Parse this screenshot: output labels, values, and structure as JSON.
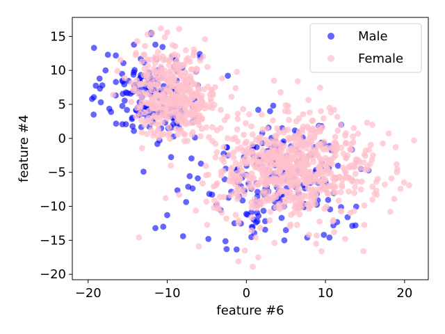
{
  "chart_data": {
    "type": "scatter",
    "title": "",
    "xlabel": "feature #6",
    "ylabel": "feature #4",
    "xlim": [
      -22.0,
      23.0
    ],
    "ylim": [
      -20.8,
      17.8
    ],
    "xticks": [
      -20,
      -10,
      0,
      10,
      20
    ],
    "yticks": [
      -20,
      -15,
      -10,
      -5,
      0,
      5,
      10,
      15
    ],
    "grid": false,
    "legend_position": "top-right",
    "series": [
      {
        "name": "Male",
        "color": "#0000ff",
        "alpha": 0.6,
        "clusters": [
          {
            "cx": -12.0,
            "cy": 6.5,
            "sx": 3.0,
            "sy": 3.5,
            "n": 160
          },
          {
            "cx": 4.0,
            "cy": -6.0,
            "sx": 4.5,
            "sy": 4.0,
            "n": 200
          }
        ],
        "points": [
          {
            "x": -19.5,
            "y": 5.8
          },
          {
            "x": -19.3,
            "y": 3.5
          },
          {
            "x": -17.5,
            "y": 12.3
          },
          {
            "x": -16.5,
            "y": 12.2
          },
          {
            "x": -17.8,
            "y": 10.0
          },
          {
            "x": -18.2,
            "y": 7.8
          },
          {
            "x": -14.2,
            "y": 13.8
          },
          {
            "x": -11.5,
            "y": 13.8
          },
          {
            "x": -13.0,
            "y": -4.9
          },
          {
            "x": -11.5,
            "y": -13.2
          },
          {
            "x": -10.5,
            "y": -13.0
          },
          {
            "x": -10.0,
            "y": -11.3
          },
          {
            "x": -8.0,
            "y": -14.4
          },
          {
            "x": -4.8,
            "y": -14.8
          },
          {
            "x": -2.5,
            "y": -16.3
          },
          {
            "x": 4.8,
            "y": -15.0
          },
          {
            "x": 7.7,
            "y": -14.6
          },
          {
            "x": 9.8,
            "y": -14.2
          },
          {
            "x": 10.5,
            "y": -14.6
          },
          {
            "x": 12.8,
            "y": -11.6
          },
          {
            "x": 13.8,
            "y": -12.8
          },
          {
            "x": 11.0,
            "y": -12.8
          },
          {
            "x": 5.0,
            "y": -13.5
          },
          {
            "x": 1.5,
            "y": 4.2
          },
          {
            "x": 3.0,
            "y": 4.0
          },
          {
            "x": 9.5,
            "y": 1.8
          },
          {
            "x": 12.0,
            "y": 2.0
          },
          {
            "x": 14.5,
            "y": -4.5
          },
          {
            "x": -1.5,
            "y": -12.5
          }
        ]
      },
      {
        "name": "Female",
        "color": "#ffc0cb",
        "alpha": 0.75,
        "clusters": [
          {
            "cx": -9.0,
            "cy": 6.5,
            "sx": 2.7,
            "sy": 3.2,
            "n": 420
          },
          {
            "cx": 6.0,
            "cy": -4.5,
            "sx": 5.0,
            "sy": 3.6,
            "n": 720
          }
        ],
        "points": [
          {
            "x": -8.5,
            "y": 16.1
          },
          {
            "x": -10.0,
            "y": 15.6
          },
          {
            "x": -12.5,
            "y": 15.3
          },
          {
            "x": -13.8,
            "y": 14.3
          },
          {
            "x": 21.2,
            "y": -0.3
          },
          {
            "x": 18.7,
            "y": -8.9
          },
          {
            "x": 18.2,
            "y": -10.8
          },
          {
            "x": 16.5,
            "y": -8.3
          },
          {
            "x": 17.5,
            "y": -6.8
          },
          {
            "x": 14.8,
            "y": -16.6
          },
          {
            "x": 9.5,
            "y": -16.6
          },
          {
            "x": 0.8,
            "y": -18.9
          },
          {
            "x": -1.0,
            "y": -18.1
          },
          {
            "x": 1.5,
            "y": -17.5
          },
          {
            "x": -0.2,
            "y": -16.5
          },
          {
            "x": 3.5,
            "y": 8.5
          },
          {
            "x": 6.5,
            "y": 8.4
          },
          {
            "x": -8.5,
            "y": -8.3
          },
          {
            "x": -10.2,
            "y": -8.8
          },
          {
            "x": -6.0,
            "y": -15.9
          },
          {
            "x": 12.5,
            "y": -14.8
          },
          {
            "x": 19.0,
            "y": -3.8
          },
          {
            "x": 16.0,
            "y": -2.5
          },
          {
            "x": 8.0,
            "y": 3.8
          },
          {
            "x": 10.5,
            "y": 4.5
          }
        ]
      }
    ]
  }
}
